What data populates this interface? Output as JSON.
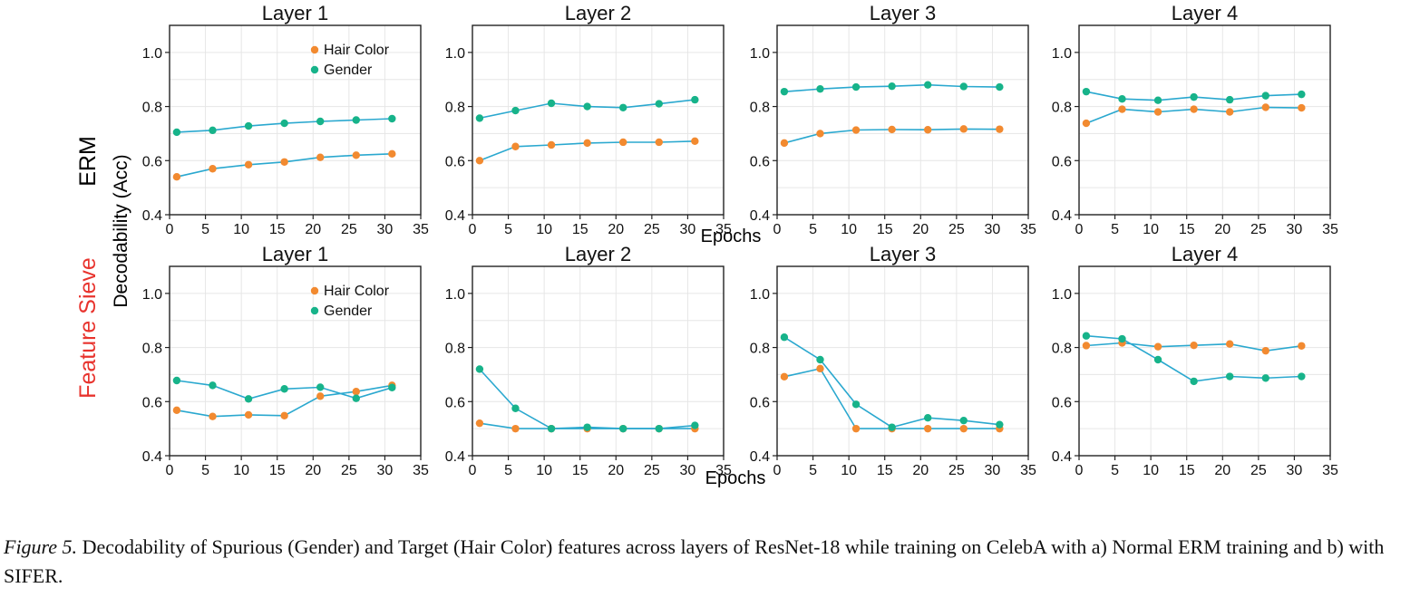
{
  "figure": {
    "row_labels": [
      {
        "text": "ERM",
        "color": "#000000"
      },
      {
        "text": "Feature Sieve",
        "color": "#e8332d"
      }
    ],
    "ylabel": "Decodability (Acc)",
    "xlabel": "Epochs",
    "caption": {
      "label": "Figure 5.",
      "text": " Decodability of Spurious (Gender) and Target (Hair Color) features across layers of ResNet-18 while training on CelebA with a) Normal ERM training and b) with SIFER."
    }
  },
  "chart_data": [
    {
      "type": "line",
      "row": 0,
      "col": 0,
      "title": "Layer 1",
      "xlim": [
        0,
        35
      ],
      "ylim": [
        0.4,
        1.1
      ],
      "xticks": [
        0,
        5,
        10,
        15,
        20,
        25,
        30,
        35
      ],
      "yticks": [
        0.4,
        0.6,
        0.8,
        1.0
      ],
      "grid": true,
      "legend": true,
      "legend_position": "top-right",
      "x": [
        1,
        6,
        11,
        16,
        21,
        26,
        31
      ],
      "series": [
        {
          "name": "Hair Color",
          "color": "#f28a30",
          "values": [
            0.54,
            0.57,
            0.585,
            0.595,
            0.612,
            0.62,
            0.625
          ]
        },
        {
          "name": "Gender",
          "color": "#17b38a",
          "values": [
            0.705,
            0.712,
            0.728,
            0.738,
            0.745,
            0.75,
            0.755
          ]
        }
      ]
    },
    {
      "type": "line",
      "row": 0,
      "col": 1,
      "title": "Layer 2",
      "xlim": [
        0,
        35
      ],
      "ylim": [
        0.4,
        1.1
      ],
      "xticks": [
        0,
        5,
        10,
        15,
        20,
        25,
        30,
        35
      ],
      "yticks": [
        0.4,
        0.6,
        0.8,
        1.0
      ],
      "grid": true,
      "legend": false,
      "x": [
        1,
        6,
        11,
        16,
        21,
        26,
        31
      ],
      "series": [
        {
          "name": "Hair Color",
          "color": "#f28a30",
          "values": [
            0.6,
            0.652,
            0.658,
            0.665,
            0.668,
            0.668,
            0.672
          ]
        },
        {
          "name": "Gender",
          "color": "#17b38a",
          "values": [
            0.757,
            0.785,
            0.812,
            0.8,
            0.796,
            0.81,
            0.825
          ]
        }
      ]
    },
    {
      "type": "line",
      "row": 0,
      "col": 2,
      "title": "Layer 3",
      "xlim": [
        0,
        35
      ],
      "ylim": [
        0.4,
        1.1
      ],
      "xticks": [
        0,
        5,
        10,
        15,
        20,
        25,
        30,
        35
      ],
      "yticks": [
        0.4,
        0.6,
        0.8,
        1.0
      ],
      "grid": true,
      "legend": false,
      "x": [
        1,
        6,
        11,
        16,
        21,
        26,
        31
      ],
      "series": [
        {
          "name": "Hair Color",
          "color": "#f28a30",
          "values": [
            0.665,
            0.7,
            0.713,
            0.715,
            0.714,
            0.717,
            0.716
          ]
        },
        {
          "name": "Gender",
          "color": "#17b38a",
          "values": [
            0.855,
            0.865,
            0.872,
            0.875,
            0.88,
            0.874,
            0.872
          ]
        }
      ]
    },
    {
      "type": "line",
      "row": 0,
      "col": 3,
      "title": "Layer 4",
      "xlim": [
        0,
        35
      ],
      "ylim": [
        0.4,
        1.1
      ],
      "xticks": [
        0,
        5,
        10,
        15,
        20,
        25,
        30,
        35
      ],
      "yticks": [
        0.4,
        0.6,
        0.8,
        1.0
      ],
      "grid": true,
      "legend": false,
      "x": [
        1,
        6,
        11,
        16,
        21,
        26,
        31
      ],
      "series": [
        {
          "name": "Hair Color",
          "color": "#f28a30",
          "values": [
            0.738,
            0.79,
            0.78,
            0.79,
            0.78,
            0.797,
            0.795
          ]
        },
        {
          "name": "Gender",
          "color": "#17b38a",
          "values": [
            0.855,
            0.828,
            0.823,
            0.835,
            0.825,
            0.84,
            0.845
          ]
        }
      ]
    },
    {
      "type": "line",
      "row": 1,
      "col": 0,
      "title": "Layer 1",
      "xlim": [
        0,
        35
      ],
      "ylim": [
        0.4,
        1.1
      ],
      "xticks": [
        0,
        5,
        10,
        15,
        20,
        25,
        30,
        35
      ],
      "yticks": [
        0.4,
        0.6,
        0.8,
        1.0
      ],
      "grid": true,
      "legend": true,
      "legend_position": "top-right",
      "x": [
        1,
        6,
        11,
        16,
        21,
        26,
        31
      ],
      "series": [
        {
          "name": "Hair Color",
          "color": "#f28a30",
          "values": [
            0.568,
            0.545,
            0.551,
            0.548,
            0.62,
            0.637,
            0.66
          ]
        },
        {
          "name": "Gender",
          "color": "#17b38a",
          "values": [
            0.678,
            0.66,
            0.61,
            0.647,
            0.653,
            0.612,
            0.652
          ]
        }
      ]
    },
    {
      "type": "line",
      "row": 1,
      "col": 1,
      "title": "Layer 2",
      "xlim": [
        0,
        35
      ],
      "ylim": [
        0.4,
        1.1
      ],
      "xticks": [
        0,
        5,
        10,
        15,
        20,
        25,
        30,
        35
      ],
      "yticks": [
        0.4,
        0.6,
        0.8,
        1.0
      ],
      "grid": true,
      "legend": false,
      "x": [
        1,
        6,
        11,
        16,
        21,
        26,
        31
      ],
      "series": [
        {
          "name": "Hair Color",
          "color": "#f28a30",
          "values": [
            0.52,
            0.5,
            0.5,
            0.5,
            0.5,
            0.5,
            0.5
          ]
        },
        {
          "name": "Gender",
          "color": "#17b38a",
          "values": [
            0.72,
            0.575,
            0.5,
            0.505,
            0.5,
            0.5,
            0.512
          ]
        }
      ]
    },
    {
      "type": "line",
      "row": 1,
      "col": 2,
      "title": "Layer 3",
      "xlim": [
        0,
        35
      ],
      "ylim": [
        0.4,
        1.1
      ],
      "xticks": [
        0,
        5,
        10,
        15,
        20,
        25,
        30,
        35
      ],
      "yticks": [
        0.4,
        0.6,
        0.8,
        1.0
      ],
      "grid": true,
      "legend": false,
      "x": [
        1,
        6,
        11,
        16,
        21,
        26,
        31
      ],
      "series": [
        {
          "name": "Hair Color",
          "color": "#f28a30",
          "values": [
            0.692,
            0.722,
            0.5,
            0.5,
            0.5,
            0.5,
            0.5
          ]
        },
        {
          "name": "Gender",
          "color": "#17b38a",
          "values": [
            0.838,
            0.755,
            0.59,
            0.505,
            0.54,
            0.53,
            0.515
          ]
        }
      ]
    },
    {
      "type": "line",
      "row": 1,
      "col": 3,
      "title": "Layer 4",
      "xlim": [
        0,
        35
      ],
      "ylim": [
        0.4,
        1.1
      ],
      "xticks": [
        0,
        5,
        10,
        15,
        20,
        25,
        30,
        35
      ],
      "yticks": [
        0.4,
        0.6,
        0.8,
        1.0
      ],
      "grid": true,
      "legend": false,
      "x": [
        1,
        6,
        11,
        16,
        21,
        26,
        31
      ],
      "series": [
        {
          "name": "Hair Color",
          "color": "#f28a30",
          "values": [
            0.807,
            0.817,
            0.803,
            0.808,
            0.813,
            0.788,
            0.806
          ]
        },
        {
          "name": "Gender",
          "color": "#17b38a",
          "values": [
            0.843,
            0.832,
            0.755,
            0.675,
            0.693,
            0.687,
            0.693
          ]
        }
      ]
    }
  ]
}
